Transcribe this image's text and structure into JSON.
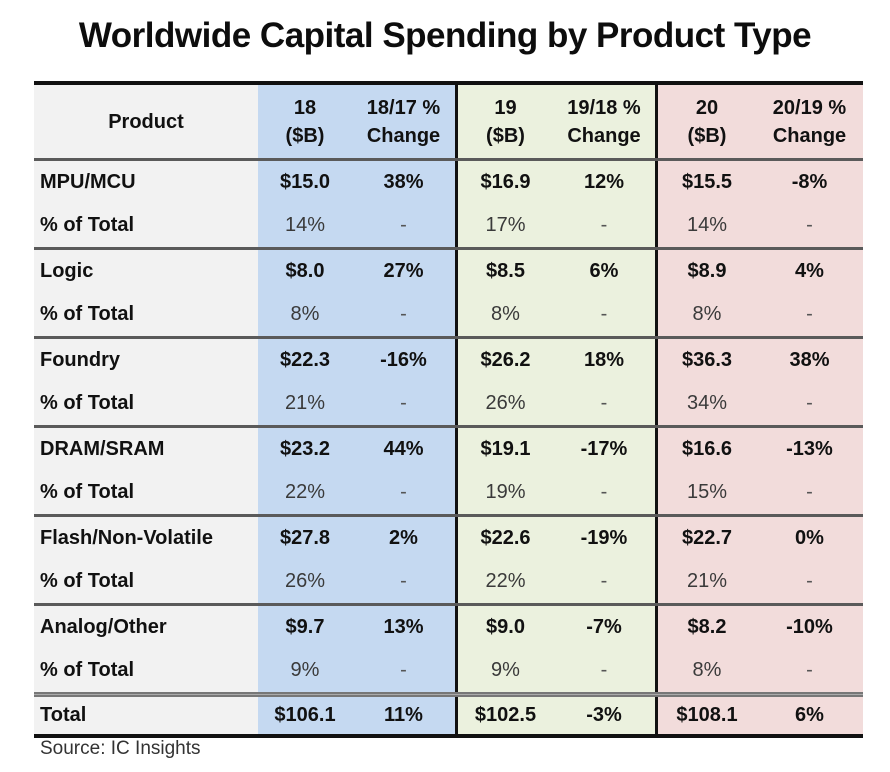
{
  "title": "Worldwide Capital Spending by Product Type",
  "headers": {
    "product": "Product",
    "y18": [
      "18",
      "($B)"
    ],
    "y18chg": [
      "18/17 %",
      "Change"
    ],
    "y19": [
      "19",
      "($B)"
    ],
    "y19chg": [
      "19/18 %",
      "Change"
    ],
    "y20": [
      "20",
      "($B)"
    ],
    "y20chg": [
      "20/19 %",
      "Change"
    ]
  },
  "colors": {
    "y2018": "#c5d9f1",
    "y2019": "#ebf1de",
    "y2020": "#f2dcdb",
    "product": "#f2f2f2"
  },
  "rows": [
    {
      "product": "MPU/MCU",
      "v18": "$15.0",
      "c18": "38%",
      "v19": "$16.9",
      "c19": "12%",
      "v20": "$15.5",
      "c20": "-8%",
      "share_label": "% of Total",
      "s18": "14%",
      "sc18": "-",
      "s19": "17%",
      "sc19": "-",
      "s20": "14%",
      "sc20": "-"
    },
    {
      "product": "Logic",
      "v18": "$8.0",
      "c18": "27%",
      "v19": "$8.5",
      "c19": "6%",
      "v20": "$8.9",
      "c20": "4%",
      "share_label": "% of Total",
      "s18": "8%",
      "sc18": "-",
      "s19": "8%",
      "sc19": "-",
      "s20": "8%",
      "sc20": "-"
    },
    {
      "product": "Foundry",
      "v18": "$22.3",
      "c18": "-16%",
      "v19": "$26.2",
      "c19": "18%",
      "v20": "$36.3",
      "c20": "38%",
      "share_label": "% of Total",
      "s18": "21%",
      "sc18": "-",
      "s19": "26%",
      "sc19": "-",
      "s20": "34%",
      "sc20": "-"
    },
    {
      "product": "DRAM/SRAM",
      "v18": "$23.2",
      "c18": "44%",
      "v19": "$19.1",
      "c19": "-17%",
      "v20": "$16.6",
      "c20": "-13%",
      "share_label": "% of Total",
      "s18": "22%",
      "sc18": "-",
      "s19": "19%",
      "sc19": "-",
      "s20": "15%",
      "sc20": "-"
    },
    {
      "product": "Flash/Non-Volatile",
      "v18": "$27.8",
      "c18": "2%",
      "v19": "$22.6",
      "c19": "-19%",
      "v20": "$22.7",
      "c20": "0%",
      "share_label": "% of Total",
      "s18": "26%",
      "sc18": "-",
      "s19": "22%",
      "sc19": "-",
      "s20": "21%",
      "sc20": "-"
    },
    {
      "product": "Analog/Other",
      "v18": "$9.7",
      "c18": "13%",
      "v19": "$9.0",
      "c19": "-7%",
      "v20": "$8.2",
      "c20": "-10%",
      "share_label": "% of Total",
      "s18": "9%",
      "sc18": "-",
      "s19": "9%",
      "sc19": "-",
      "s20": "8%",
      "sc20": "-"
    }
  ],
  "total": {
    "product": "Total",
    "v18": "$106.1",
    "c18": "11%",
    "v19": "$102.5",
    "c19": "-3%",
    "v20": "$108.1",
    "c20": "6%"
  },
  "source": "Source: IC Insights"
}
